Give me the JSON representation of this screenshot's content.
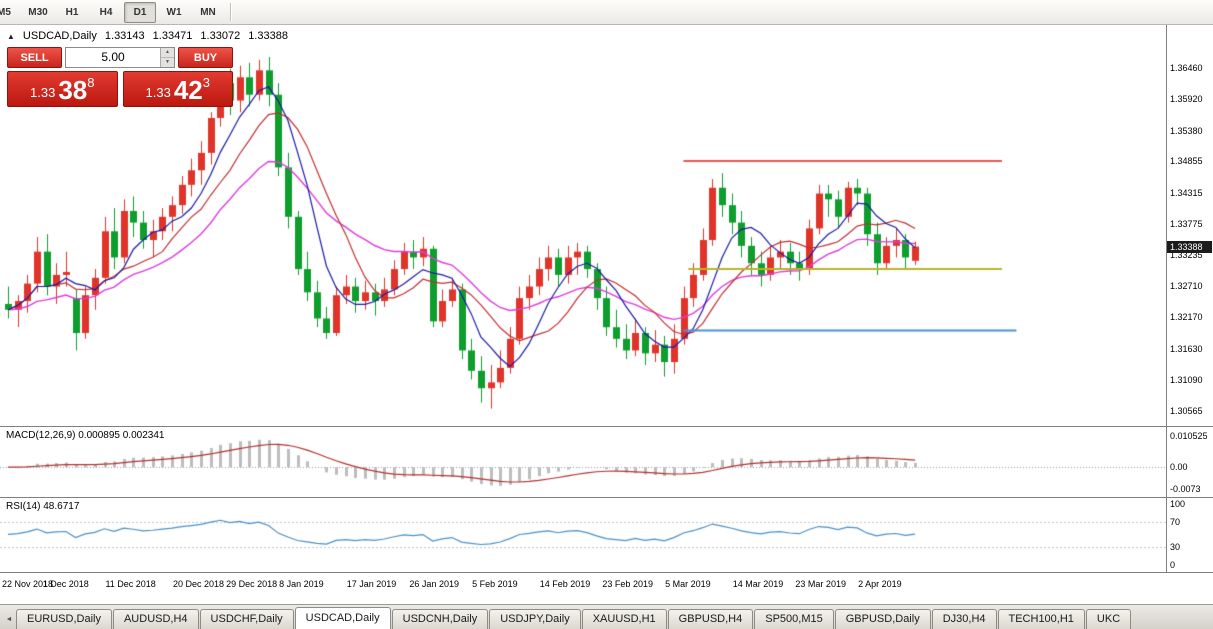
{
  "icons": {
    "collapse_arrow": "▲",
    "spin_up": "▲",
    "spin_down": "▼",
    "tab_scroll_left": "◄"
  },
  "colors": {
    "candle_up": "#e0342a",
    "candle_down": "#0f9e2e",
    "ma_fast": "#1b1ba6",
    "ma_medium": "#c22f2f",
    "ma_slow": "#dd3cdd",
    "hline_resistance": "#e8554e",
    "hline_mid": "#b9b428",
    "hline_support": "#4a90d9",
    "macd_histogram": "#bdbdbd",
    "macd_signal": "#b03030",
    "rsi_line": "#4a8fc7",
    "trade_red": "#d02a20"
  },
  "toolbar": {
    "timeframes": [
      {
        "label": "M5",
        "active": false,
        "clipped": true
      },
      {
        "label": "M30",
        "active": false
      },
      {
        "label": "H1",
        "active": false
      },
      {
        "label": "H4",
        "active": false
      },
      {
        "label": "D1",
        "active": true
      },
      {
        "label": "W1",
        "active": false
      },
      {
        "label": "MN",
        "active": false
      }
    ]
  },
  "chart": {
    "title": "USDCAD,Daily",
    "ohlc": {
      "open": "1.33143",
      "high": "1.33471",
      "low": "1.33072",
      "close": "1.33388"
    },
    "current_price_label": "1.33388"
  },
  "trade_panel": {
    "sell_label": "SELL",
    "buy_label": "BUY",
    "volume": "5.00",
    "sell_price": {
      "prefix": "1.33",
      "pips": "38",
      "point": "8"
    },
    "buy_price": {
      "prefix": "1.33",
      "pips": "42",
      "point": "3"
    }
  },
  "macd": {
    "label": "MACD(12,26,9) 0.000895 0.002341"
  },
  "rsi": {
    "label": "RSI(14) 48.6717"
  },
  "bottom_tabs": [
    {
      "label": "EURUSD,Daily",
      "active": false
    },
    {
      "label": "AUDUSD,H4",
      "active": false
    },
    {
      "label": "USDCHF,Daily",
      "active": false
    },
    {
      "label": "USDCAD,Daily",
      "active": true
    },
    {
      "label": "USDCNH,Daily",
      "active": false
    },
    {
      "label": "USDJPY,Daily",
      "active": false
    },
    {
      "label": "XAUUSD,H1",
      "active": false
    },
    {
      "label": "GBPUSD,H4",
      "active": false
    },
    {
      "label": "SP500,M15",
      "active": false
    },
    {
      "label": "GBPUSD,Daily",
      "active": false
    },
    {
      "label": "DJ30,H4",
      "active": false
    },
    {
      "label": "TECH100,H1",
      "active": false
    },
    {
      "label": "UKC",
      "active": false
    }
  ],
  "chart_data": {
    "type": "candlestick",
    "symbol": "USDCAD",
    "timeframe": "Daily",
    "price_range": {
      "max": 1.372,
      "min": 1.303
    },
    "price_scale_labels": [
      "1.36460",
      "1.35920",
      "1.35380",
      "1.34855",
      "1.34315",
      "1.33775",
      "1.33235",
      "1.32710",
      "1.32170",
      "1.31630",
      "1.31090",
      "1.30565"
    ],
    "current_price": 1.33388,
    "candles": [
      [
        1.324,
        1.327,
        1.3215,
        1.323
      ],
      [
        1.323,
        1.3255,
        1.32,
        1.3245
      ],
      [
        1.3245,
        1.329,
        1.3225,
        1.3275
      ],
      [
        1.3275,
        1.3355,
        1.326,
        1.333
      ],
      [
        1.333,
        1.336,
        1.3255,
        1.327
      ],
      [
        1.327,
        1.331,
        1.324,
        1.329
      ],
      [
        1.329,
        1.333,
        1.327,
        1.3295
      ],
      [
        1.325,
        1.3265,
        1.316,
        1.319
      ],
      [
        1.319,
        1.327,
        1.318,
        1.3255
      ],
      [
        1.3255,
        1.33,
        1.323,
        1.3285
      ],
      [
        1.3285,
        1.339,
        1.3275,
        1.3365
      ],
      [
        1.3365,
        1.3405,
        1.33,
        1.332
      ],
      [
        1.332,
        1.342,
        1.331,
        1.34
      ],
      [
        1.34,
        1.3425,
        1.3355,
        1.338
      ],
      [
        1.338,
        1.34,
        1.3335,
        1.335
      ],
      [
        1.335,
        1.3385,
        1.332,
        1.3365
      ],
      [
        1.3365,
        1.3405,
        1.335,
        1.339
      ],
      [
        1.339,
        1.3425,
        1.3365,
        1.341
      ],
      [
        1.341,
        1.346,
        1.3395,
        1.3445
      ],
      [
        1.3445,
        1.349,
        1.3425,
        1.347
      ],
      [
        1.347,
        1.352,
        1.3445,
        1.35
      ],
      [
        1.35,
        1.357,
        1.348,
        1.356
      ],
      [
        1.356,
        1.364,
        1.3545,
        1.362
      ],
      [
        1.362,
        1.3645,
        1.3565,
        1.359
      ],
      [
        1.359,
        1.365,
        1.357,
        1.363
      ],
      [
        1.363,
        1.3655,
        1.358,
        1.36
      ],
      [
        1.36,
        1.366,
        1.359,
        1.3642
      ],
      [
        1.3642,
        1.3665,
        1.358,
        1.36
      ],
      [
        1.36,
        1.362,
        1.346,
        1.3475
      ],
      [
        1.3475,
        1.35,
        1.337,
        1.339
      ],
      [
        1.339,
        1.34,
        1.329,
        1.33
      ],
      [
        1.33,
        1.333,
        1.3245,
        1.326
      ],
      [
        1.326,
        1.328,
        1.32,
        1.3215
      ],
      [
        1.3215,
        1.3235,
        1.318,
        1.319
      ],
      [
        1.319,
        1.327,
        1.3185,
        1.3255
      ],
      [
        1.3255,
        1.329,
        1.324,
        1.327
      ],
      [
        1.327,
        1.3285,
        1.3225,
        1.3245
      ],
      [
        1.3245,
        1.328,
        1.323,
        1.326
      ],
      [
        1.326,
        1.3275,
        1.322,
        1.3245
      ],
      [
        1.3245,
        1.3285,
        1.3235,
        1.3265
      ],
      [
        1.3265,
        1.3315,
        1.3255,
        1.33
      ],
      [
        1.33,
        1.3345,
        1.329,
        1.333
      ],
      [
        1.333,
        1.335,
        1.33,
        1.332
      ],
      [
        1.332,
        1.3355,
        1.3305,
        1.3335
      ],
      [
        1.3335,
        1.334,
        1.32,
        1.321
      ],
      [
        1.321,
        1.3265,
        1.32,
        1.3245
      ],
      [
        1.3245,
        1.3285,
        1.3235,
        1.3265
      ],
      [
        1.3265,
        1.3275,
        1.3145,
        1.316
      ],
      [
        1.316,
        1.318,
        1.311,
        1.3125
      ],
      [
        1.3125,
        1.315,
        1.307,
        1.3095
      ],
      [
        1.3095,
        1.3135,
        1.306,
        1.3105
      ],
      [
        1.3105,
        1.316,
        1.3095,
        1.313
      ],
      [
        1.313,
        1.32,
        1.312,
        1.318
      ],
      [
        1.318,
        1.327,
        1.317,
        1.325
      ],
      [
        1.325,
        1.329,
        1.323,
        1.327
      ],
      [
        1.327,
        1.332,
        1.3255,
        1.33
      ],
      [
        1.33,
        1.334,
        1.328,
        1.332
      ],
      [
        1.332,
        1.3335,
        1.327,
        1.329
      ],
      [
        1.329,
        1.334,
        1.3275,
        1.332
      ],
      [
        1.332,
        1.3345,
        1.329,
        1.333
      ],
      [
        1.333,
        1.334,
        1.3285,
        1.33
      ],
      [
        1.33,
        1.331,
        1.323,
        1.325
      ],
      [
        1.325,
        1.327,
        1.3185,
        1.32
      ],
      [
        1.32,
        1.323,
        1.3165,
        1.318
      ],
      [
        1.318,
        1.3205,
        1.3145,
        1.316
      ],
      [
        1.316,
        1.3215,
        1.315,
        1.319
      ],
      [
        1.319,
        1.32,
        1.3135,
        1.3155
      ],
      [
        1.3155,
        1.3195,
        1.314,
        1.317
      ],
      [
        1.317,
        1.3185,
        1.3115,
        1.314
      ],
      [
        1.314,
        1.3205,
        1.312,
        1.318
      ],
      [
        1.318,
        1.327,
        1.317,
        1.325
      ],
      [
        1.325,
        1.331,
        1.3235,
        1.329
      ],
      [
        1.329,
        1.337,
        1.328,
        1.335
      ],
      [
        1.335,
        1.3455,
        1.334,
        1.344
      ],
      [
        1.344,
        1.3465,
        1.339,
        1.341
      ],
      [
        1.341,
        1.343,
        1.336,
        1.338
      ],
      [
        1.338,
        1.34,
        1.332,
        1.334
      ],
      [
        1.334,
        1.3355,
        1.329,
        1.331
      ],
      [
        1.331,
        1.333,
        1.327,
        1.329
      ],
      [
        1.329,
        1.334,
        1.328,
        1.332
      ],
      [
        1.332,
        1.335,
        1.33,
        1.333
      ],
      [
        1.333,
        1.3345,
        1.329,
        1.331
      ],
      [
        1.331,
        1.333,
        1.328,
        1.33
      ],
      [
        1.33,
        1.3385,
        1.329,
        1.337
      ],
      [
        1.337,
        1.3445,
        1.336,
        1.343
      ],
      [
        1.343,
        1.3445,
        1.339,
        1.342
      ],
      [
        1.342,
        1.3435,
        1.337,
        1.339
      ],
      [
        1.339,
        1.345,
        1.338,
        1.344
      ],
      [
        1.344,
        1.3455,
        1.341,
        1.343
      ],
      [
        1.343,
        1.344,
        1.334,
        1.336
      ],
      [
        1.336,
        1.338,
        1.329,
        1.331
      ],
      [
        1.331,
        1.3355,
        1.33,
        1.334
      ],
      [
        1.334,
        1.337,
        1.332,
        1.335
      ],
      [
        1.335,
        1.336,
        1.33,
        1.332
      ],
      [
        1.33143,
        1.33471,
        1.33072,
        1.33388
      ]
    ],
    "moving_averages": [
      {
        "name": "ma-slow",
        "type": "ema",
        "period": 20,
        "color": "#dd3cdd",
        "width": 1.4
      },
      {
        "name": "ma-medium",
        "type": "sma",
        "period": 10,
        "color": "#c22f2f",
        "width": 1.2
      },
      {
        "name": "ma-fast",
        "type": "sma",
        "period": 6,
        "color": "#1b1ba6",
        "width": 1.2
      }
    ],
    "hlines": [
      {
        "name": "resistance-line",
        "price": 1.3487,
        "from": 70,
        "to": 103,
        "color": "#e8554e"
      },
      {
        "name": "mid-line",
        "price": 1.3301,
        "from": 70.5,
        "to": 103,
        "color": "#b9b428"
      },
      {
        "name": "support-line",
        "price": 1.3195,
        "from": 70,
        "to": 104.5,
        "color": "#4a90d9"
      }
    ],
    "x_labels": [
      {
        "text": "22 Nov 2018",
        "index": 0
      },
      {
        "text": "1 Dec 2018",
        "index": 6.5
      },
      {
        "text": "11 Dec 2018",
        "index": 13
      },
      {
        "text": "20 Dec 2018",
        "index": 20
      },
      {
        "text": "29 Dec 2018",
        "index": 25.5
      },
      {
        "text": "8 Jan 2019",
        "index": 31
      },
      {
        "text": "17 Jan 2019",
        "index": 38
      },
      {
        "text": "26 Jan 2019",
        "index": 44.5
      },
      {
        "text": "5 Feb 2019",
        "index": 51
      },
      {
        "text": "14 Feb 2019",
        "index": 58
      },
      {
        "text": "23 Feb 2019",
        "index": 64.5
      },
      {
        "text": "5 Mar 2019",
        "index": 71
      },
      {
        "text": "14 Mar 2019",
        "index": 78
      },
      {
        "text": "23 Mar 2019",
        "index": 84.5
      },
      {
        "text": "2 Apr 2019",
        "index": 91
      }
    ],
    "macd": {
      "fast": 12,
      "slow": 26,
      "signal": 9,
      "range": {
        "max": 0.0136,
        "min": -0.0101
      },
      "scale_labels": [
        {
          "text": "0.010525",
          "value": 0.010525
        },
        {
          "text": "0.00",
          "value": 0
        },
        {
          "text": "-0.0073",
          "value": -0.0073
        }
      ]
    },
    "rsi": {
      "period": 14,
      "levels": [
        70,
        30
      ],
      "range": {
        "max": 110,
        "min": -12
      },
      "scale_labels": [
        "100",
        "70",
        "30",
        "0"
      ]
    }
  }
}
